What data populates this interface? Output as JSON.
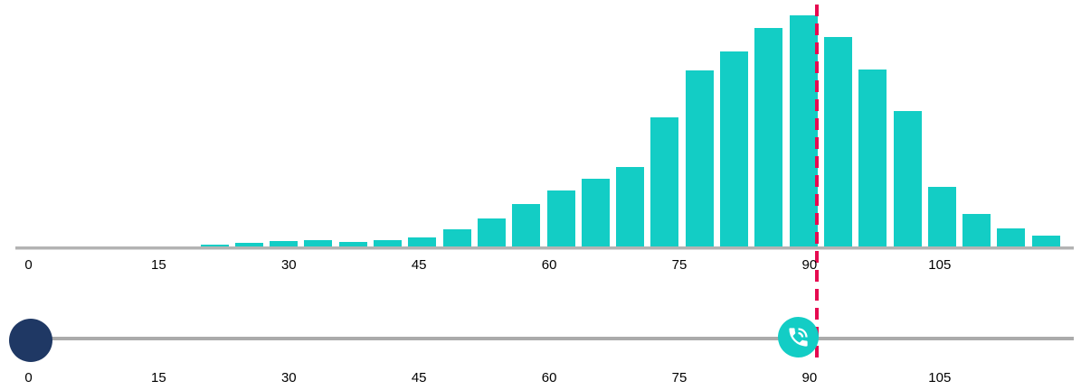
{
  "colors": {
    "bar_teal": "#13CDC5",
    "marker_crimson": "#E60A50",
    "handle_navy": "#1F3864",
    "axis_gray": "#B3B3B3",
    "track_gray": "#ABABAB",
    "label_color": "#000000",
    "icon_white": "#FFFFFF"
  },
  "chart_data": {
    "type": "bar",
    "subtype": "histogram",
    "title": "",
    "xlabel": "",
    "ylabel": "",
    "grid": false,
    "legend": false,
    "x_tick_values": [
      0,
      15,
      30,
      45,
      60,
      75,
      90,
      105
    ],
    "bin_width": 4,
    "bin_centers": [
      21,
      25,
      29,
      33,
      37,
      41,
      45,
      49,
      53,
      57,
      61,
      65,
      69,
      73,
      77,
      81,
      85,
      89,
      93,
      97,
      101,
      105,
      109,
      113,
      117
    ],
    "values": [
      4,
      6,
      8,
      9,
      7,
      9,
      12,
      21,
      33,
      49,
      64,
      77,
      90,
      145,
      197,
      218,
      244,
      258,
      234,
      198,
      152,
      68,
      38,
      22,
      14
    ],
    "ylim": [
      0,
      270
    ],
    "marker_line_x": 91
  },
  "histogram_axis": {
    "tick_labels": [
      "0",
      "15",
      "30",
      "45",
      "60",
      "75",
      "90",
      "105"
    ]
  },
  "slider": {
    "tick_labels": [
      "0",
      "15",
      "30",
      "45",
      "60",
      "75",
      "90",
      "105"
    ],
    "start_handle_value": 0,
    "phone_handle_value": 90,
    "marker_value": 91,
    "handle_icon": "phone-ringing-icon"
  }
}
